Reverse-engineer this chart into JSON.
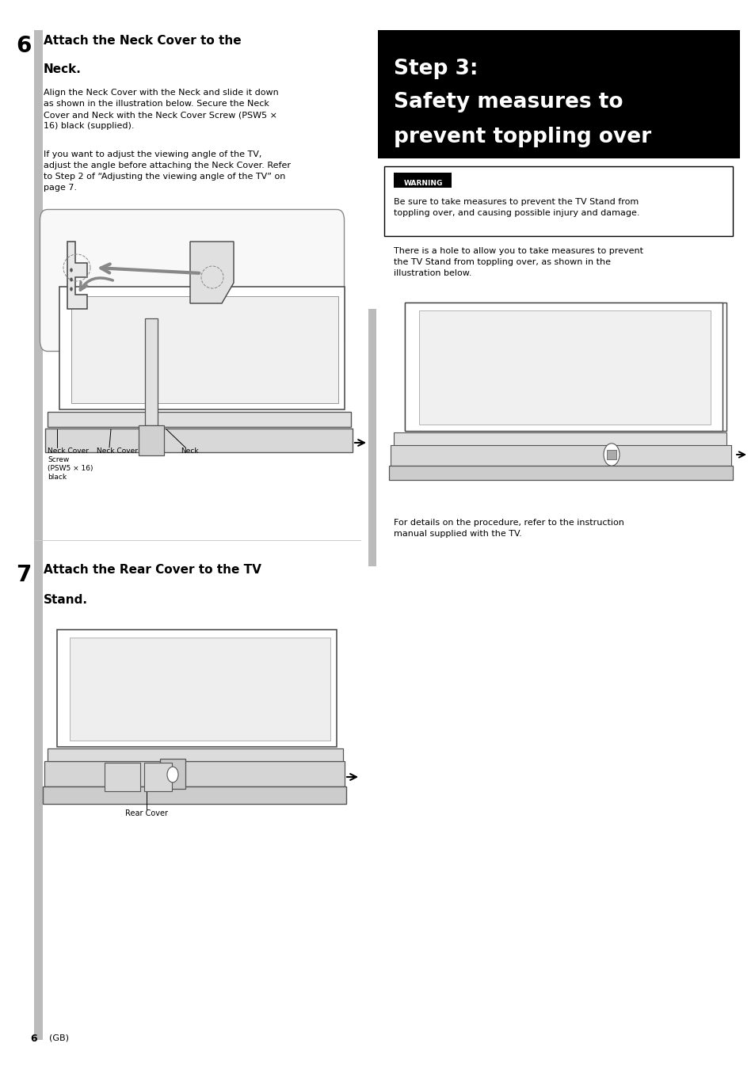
{
  "page_bg": "#ffffff",
  "page_width": 9.54,
  "page_height": 13.51,
  "gray_bar_color": "#bbbbbb",
  "step_box_bg": "#000000",
  "step_box_text_color": "#ffffff",
  "step_line1": "Step 3:",
  "step_line2": "Safety measures to",
  "step_line3": "prevent toppling over",
  "section6_number": "6",
  "section6_title_line1": "Attach the Neck Cover to the",
  "section6_title_line2": "Neck.",
  "section6_body1": "Align the Neck Cover with the Neck and slide it down\nas shown in the illustration below. Secure the Neck\nCover and Neck with the Neck Cover Screw (PSW5 ×\n16) black (supplied).",
  "section6_body2": "If you want to adjust the viewing angle of the TV,\nadjust the angle before attaching the Neck Cover. Refer\nto Step 2 of “Adjusting the viewing angle of the TV” on\npage 7.",
  "warning_label_text": "WARNING",
  "warning_text": "Be sure to take measures to prevent the TV Stand from\ntoppling over, and causing possible injury and damage.",
  "right_body_text1": "There is a hole to allow you to take measures to prevent\nthe TV Stand from toppling over, as shown in the\nillustration below.",
  "right_body_text2": "For details on the procedure, refer to the instruction\nmanual supplied with the TV.",
  "section7_number": "7",
  "section7_title_line1": "Attach the Rear Cover to the TV",
  "section7_title_line2": "Stand.",
  "neck_cover_screw_label": "Neck Cover\nScrew\n(PSW5 × 16)\nblack",
  "neck_cover_label": "Neck Cover",
  "neck_label": "Neck",
  "rear_cover_label": "Rear Cover",
  "page_number": "6",
  "page_number_sub": "(GB)"
}
